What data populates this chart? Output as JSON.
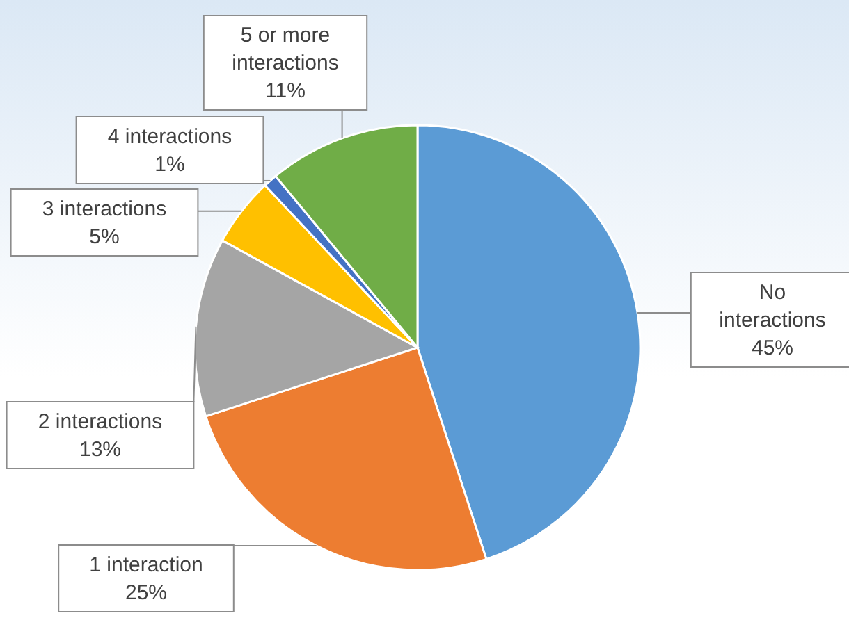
{
  "chart_data": {
    "type": "pie",
    "categories": [
      "No interactions",
      "1 interaction",
      "2 interactions",
      "3 interactions",
      "4 interactions",
      "5 or more interactions"
    ],
    "values": [
      45,
      25,
      13,
      5,
      1,
      11
    ],
    "value_labels": [
      "45%",
      "25%",
      "13%",
      "5%",
      "1%",
      "11%"
    ],
    "colors": [
      "#5b9bd5",
      "#ed7d31",
      "#a5a5a5",
      "#ffc000",
      "#4472c4",
      "#70ad47"
    ],
    "legend": false
  }
}
